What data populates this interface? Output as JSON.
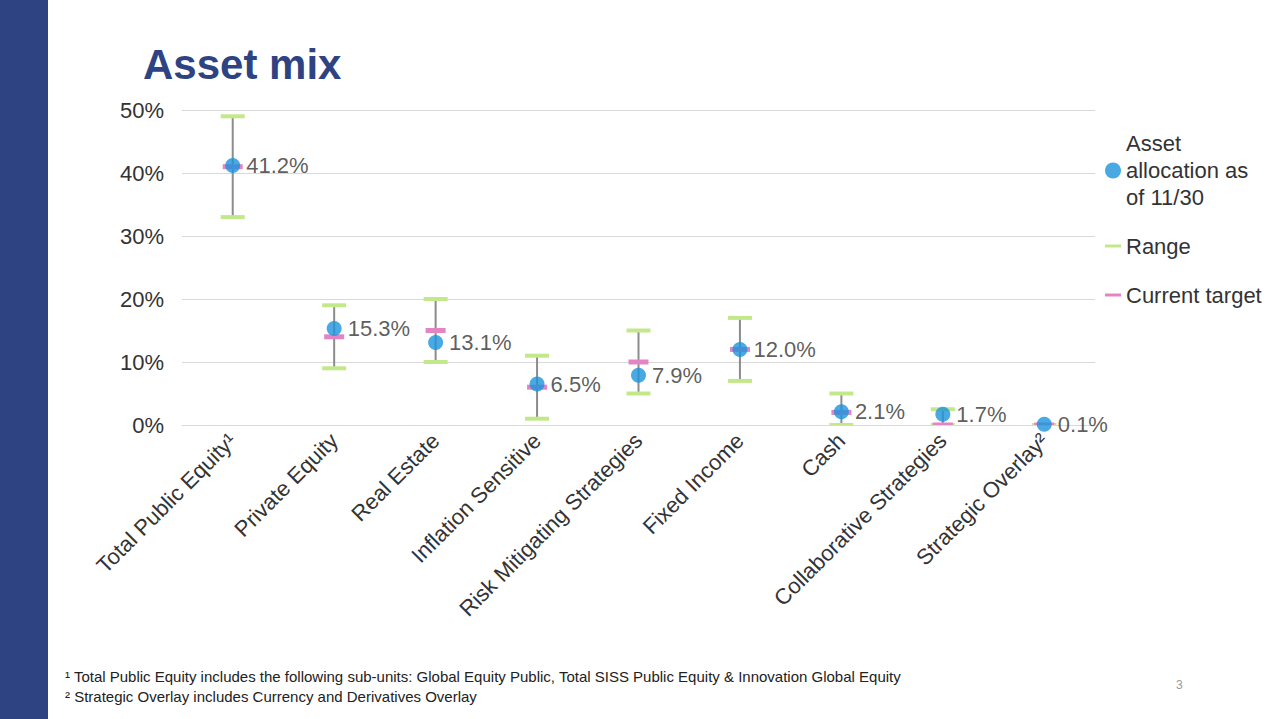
{
  "chart_data": {
    "type": "scatter",
    "title": "Asset mix",
    "categories": [
      "Total Public Equity¹",
      "Private Equity",
      "Real Estate",
      "Inflation Sensitive",
      "Risk Mitigating Strategies",
      "Fixed Income",
      "Cash",
      "Collaborative Strategies",
      "Strategic Overlay²"
    ],
    "series": [
      {
        "name": "Asset allocation as of 11/30",
        "type": "scatter",
        "marker": "circle",
        "color": "#1b93dc",
        "values": [
          41.2,
          15.3,
          13.1,
          6.5,
          7.9,
          12.0,
          2.1,
          1.7,
          0.1
        ],
        "value_labels": [
          "41.2%",
          "15.3%",
          "13.1%",
          "6.5%",
          "7.9%",
          "12.0%",
          "2.1%",
          "1.7%",
          "0.1%"
        ]
      },
      {
        "name": "Range",
        "type": "range",
        "marker": "dash",
        "color": "#c3e88a",
        "low": [
          33,
          9,
          10,
          1,
          5,
          7,
          0,
          0,
          0
        ],
        "high": [
          49,
          19,
          20,
          11,
          15,
          17,
          5,
          2.5,
          0
        ]
      },
      {
        "name": "Current target",
        "type": "target",
        "marker": "dash",
        "color": "#e384c4",
        "values": [
          41,
          14,
          15,
          6,
          10,
          12,
          2,
          0,
          0
        ]
      }
    ],
    "ylim": [
      0,
      50
    ],
    "yticks": [
      {
        "value": 0,
        "label": "0%"
      },
      {
        "value": 10,
        "label": "10%"
      },
      {
        "value": 20,
        "label": "20%"
      },
      {
        "value": 30,
        "label": "30%"
      },
      {
        "value": 40,
        "label": "40%"
      },
      {
        "value": 50,
        "label": "50%"
      }
    ],
    "grid": true,
    "legend": "right",
    "data_labels": true,
    "annotations": [
      "¹ Total Public Equity includes the following sub-units: Global Equity Public, Total SISS Public Equity & Innovation Global Equity",
      "² Strategic Overlay includes Currency and Derivatives Overlay",
      "3"
    ]
  }
}
